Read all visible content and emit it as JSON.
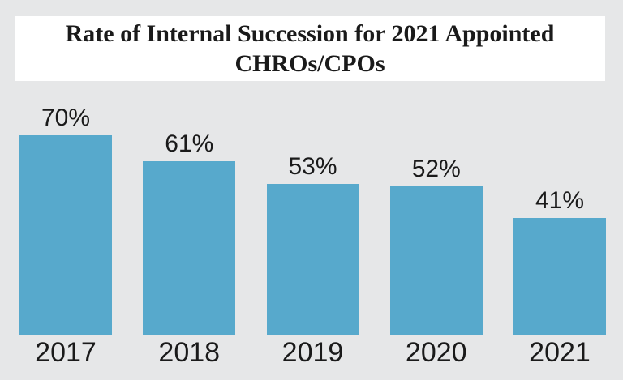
{
  "colors": {
    "background": "#e6e7e8",
    "title_card_bg": "#ffffff",
    "bar": "#57a9cc",
    "text": "#1a1a1a"
  },
  "chart_data": {
    "type": "bar",
    "title": "Rate of Internal Succession for 2021 Appointed CHROs/CPOs",
    "categories": [
      "2017",
      "2018",
      "2019",
      "2020",
      "2021"
    ],
    "values": [
      70,
      61,
      53,
      52,
      41
    ],
    "data_labels": [
      "70%",
      "61%",
      "53%",
      "52%",
      "41%"
    ],
    "xlabel": "",
    "ylabel": "",
    "ylim": [
      0,
      80
    ],
    "grid": false,
    "legend": false,
    "axis_lines": false,
    "label_position": "above-bars",
    "orientation": "vertical"
  }
}
